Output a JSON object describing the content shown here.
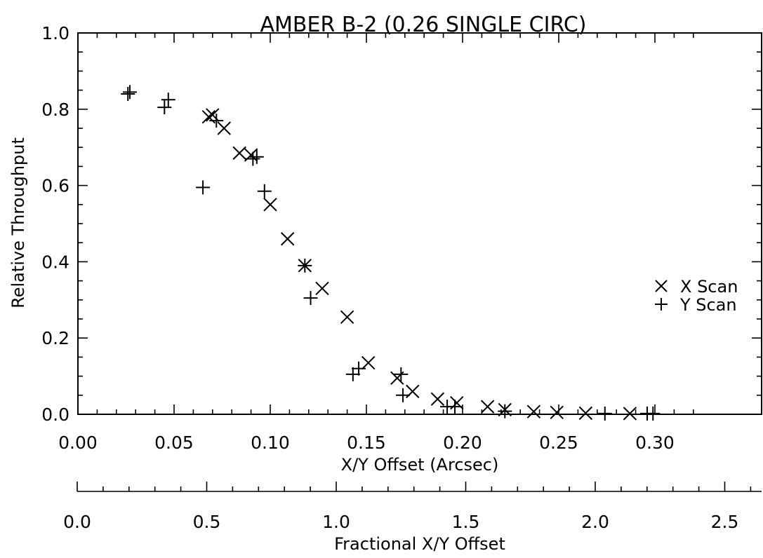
{
  "chart_data": {
    "type": "scatter",
    "title": "AMBER B-2 (0.26 SINGLE CIRC)",
    "xlabel": "X/Y Offset (Arcsec)",
    "ylabel": "Relative Throughput",
    "xlim": [
      0,
      0.32
    ],
    "ylim": [
      0,
      1.0
    ],
    "x_ticks": [
      "0.00",
      "0.05",
      "0.10",
      "0.15",
      "0.20",
      "0.25",
      "0.30"
    ],
    "y_ticks": [
      "0.0",
      "0.2",
      "0.4",
      "0.6",
      "0.8",
      "1.0"
    ],
    "secondary_xaxis": {
      "label": "Fractional X/Y Offset",
      "xlim": [
        0,
        2.85
      ],
      "ticks": [
        "0.0",
        "0.5",
        "1.0",
        "1.5",
        "2.0",
        "2.5"
      ]
    },
    "legend_position": "right",
    "grid": false,
    "series": [
      {
        "name": "X Scan",
        "marker": "x",
        "points": [
          [
            0.068,
            0.78
          ],
          [
            0.07,
            0.785
          ],
          [
            0.076,
            0.75
          ],
          [
            0.084,
            0.685
          ],
          [
            0.09,
            0.68
          ],
          [
            0.1,
            0.55
          ],
          [
            0.109,
            0.46
          ],
          [
            0.118,
            0.39
          ],
          [
            0.127,
            0.33
          ],
          [
            0.14,
            0.255
          ],
          [
            0.151,
            0.135
          ],
          [
            0.166,
            0.095
          ],
          [
            0.174,
            0.06
          ],
          [
            0.187,
            0.04
          ],
          [
            0.197,
            0.03
          ],
          [
            0.213,
            0.02
          ],
          [
            0.222,
            0.012
          ],
          [
            0.237,
            0.007
          ],
          [
            0.249,
            0.005
          ],
          [
            0.264,
            0.003
          ],
          [
            0.287,
            0.002
          ]
        ]
      },
      {
        "name": "Y Scan",
        "marker": "+",
        "points": [
          [
            0.026,
            0.84
          ],
          [
            0.027,
            0.845
          ],
          [
            0.045,
            0.805
          ],
          [
            0.047,
            0.825
          ],
          [
            0.065,
            0.595
          ],
          [
            0.072,
            0.77
          ],
          [
            0.091,
            0.67
          ],
          [
            0.093,
            0.675
          ],
          [
            0.097,
            0.585
          ],
          [
            0.118,
            0.39
          ],
          [
            0.121,
            0.305
          ],
          [
            0.143,
            0.105
          ],
          [
            0.146,
            0.12
          ],
          [
            0.168,
            0.105
          ],
          [
            0.169,
            0.05
          ],
          [
            0.192,
            0.02
          ],
          [
            0.196,
            0.02
          ],
          [
            0.222,
            0.008
          ],
          [
            0.274,
            0.002
          ],
          [
            0.296,
            0.002
          ],
          [
            0.299,
            0.002
          ]
        ]
      }
    ]
  }
}
